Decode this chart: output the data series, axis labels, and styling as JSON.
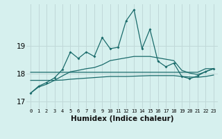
{
  "title": "",
  "xlabel": "Humidex (Indice chaleur)",
  "bg_color": "#d6f0ee",
  "grid_color": "#c8dede",
  "line_color": "#1a6b6b",
  "xlim": [
    -0.5,
    23.5
  ],
  "ylim": [
    16.75,
    20.5
  ],
  "yticks": [
    17,
    18,
    19
  ],
  "xtick_labels": [
    "0",
    "1",
    "2",
    "3",
    "4",
    "5",
    "6",
    "7",
    "8",
    "9",
    "10",
    "11",
    "12",
    "13",
    "14",
    "15",
    "16",
    "17",
    "18",
    "19",
    "20",
    "21",
    "22",
    "23"
  ],
  "spiky_line": [
    17.3,
    17.55,
    17.68,
    17.85,
    18.15,
    18.78,
    18.55,
    18.78,
    18.62,
    19.3,
    18.9,
    18.95,
    19.9,
    20.3,
    18.9,
    19.6,
    18.45,
    18.25,
    18.38,
    17.9,
    17.82,
    17.92,
    18.08,
    18.18
  ],
  "flat_line1": [
    18.05,
    18.05,
    18.05,
    18.05,
    18.05,
    18.05,
    18.05,
    18.05,
    18.05,
    18.05,
    18.05,
    18.05,
    18.05,
    18.05,
    18.05,
    18.05,
    18.05,
    18.05,
    18.05,
    18.05,
    18.05,
    18.05,
    18.18,
    18.18
  ],
  "smooth_line": [
    17.3,
    17.52,
    17.62,
    17.76,
    17.92,
    18.07,
    18.12,
    18.18,
    18.22,
    18.32,
    18.47,
    18.52,
    18.57,
    18.62,
    18.62,
    18.62,
    18.57,
    18.52,
    18.47,
    18.12,
    18.02,
    17.97,
    18.07,
    18.18
  ],
  "flat_line2": [
    17.76,
    17.76,
    17.76,
    17.76,
    17.77,
    17.8,
    17.82,
    17.84,
    17.86,
    17.88,
    17.9,
    17.9,
    17.9,
    17.91,
    17.92,
    17.93,
    17.93,
    17.93,
    17.93,
    17.9,
    17.88,
    17.87,
    17.9,
    17.95
  ]
}
